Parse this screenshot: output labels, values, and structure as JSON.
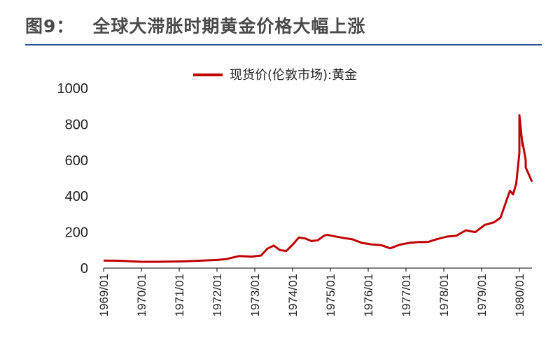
{
  "header": {
    "figure_label": "图9：",
    "figure_title": "全球大滞胀时期黄金价格大幅上涨"
  },
  "colors": {
    "series": "#c00000",
    "rule": "#2f5597"
  },
  "chart_data": {
    "type": "line",
    "title": "全球大滞胀时期黄金价格大幅上涨",
    "legend": {
      "position": "top-center"
    },
    "yticks": [
      "0",
      "200",
      "400",
      "600",
      "800",
      "1000"
    ],
    "ylim": [
      0,
      1000
    ],
    "xticks": [
      "1969/01",
      "1970/01",
      "1971/01",
      "1972/01",
      "1973/01",
      "1974/01",
      "1975/01",
      "1976/01",
      "1977/01",
      "1978/01",
      "1979/01",
      "1980/01"
    ],
    "xlim": [
      "1969/01",
      "1980/05"
    ],
    "grid": false,
    "series": [
      {
        "name": "现货价(伦敦市场):黄金",
        "x": [
          "1969/01",
          "1969/06",
          "1970/01",
          "1970/06",
          "1971/01",
          "1971/06",
          "1972/01",
          "1972/04",
          "1972/08",
          "1972/12",
          "1973/03",
          "1973/05",
          "1973/07",
          "1973/09",
          "1973/11",
          "1974/01",
          "1974/03",
          "1974/05",
          "1974/07",
          "1974/09",
          "1974/11",
          "1974/12",
          "1975/02",
          "1975/05",
          "1975/08",
          "1975/11",
          "1976/02",
          "1976/05",
          "1976/08",
          "1976/11",
          "1977/02",
          "1977/05",
          "1977/08",
          "1977/11",
          "1978/02",
          "1978/05",
          "1978/08",
          "1978/11",
          "1979/02",
          "1979/05",
          "1979/07",
          "1979/09",
          "1979/10",
          "1979/11",
          "1979/12",
          "1980/01",
          "1980/01",
          "1980/02",
          "1980/02",
          "1980/03",
          "1980/03",
          "1980/04",
          "1980/05"
        ],
        "values": [
          42,
          41,
          35,
          35,
          37,
          40,
          45,
          50,
          67,
          64,
          70,
          108,
          125,
          100,
          95,
          130,
          170,
          165,
          150,
          155,
          180,
          185,
          178,
          168,
          160,
          140,
          132,
          128,
          110,
          130,
          140,
          145,
          145,
          162,
          175,
          180,
          210,
          200,
          240,
          255,
          280,
          380,
          430,
          410,
          470,
          640,
          850,
          680,
          700,
          600,
          560,
          520,
          480
        ]
      }
    ]
  }
}
